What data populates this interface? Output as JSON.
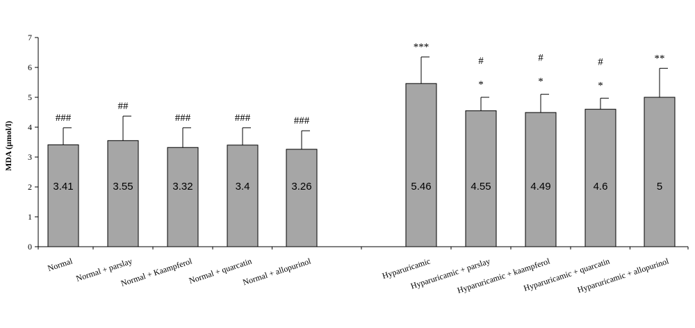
{
  "chart_data": {
    "type": "bar",
    "title": "",
    "xlabel": "",
    "ylabel": "MDA (µmol/l)",
    "ylim": [
      0,
      7
    ],
    "yticks": [
      0,
      1,
      2,
      3,
      4,
      5,
      6,
      7
    ],
    "grid": false,
    "bar_color": "#a6a6a6",
    "categories": [
      "Normal",
      "Normal +  parslay",
      "Normal + Kaampferol",
      "Normal + quarcatin",
      "Normal + allopurinol",
      "Hyparuricamic",
      "Hyparuricamic + parslay",
      "Hyparuricamic + kaampferol",
      "Hyparuricamic + quarcatin",
      "Hyparuricamic + allopurinol"
    ],
    "values": [
      3.41,
      3.55,
      3.32,
      3.4,
      3.26,
      5.46,
      4.55,
      4.49,
      4.6,
      5
    ],
    "value_labels": [
      "3.41",
      "3.55",
      "3.32",
      "3.4",
      "3.26",
      "5.46",
      "4.55",
      "4.49",
      "4.6",
      "5"
    ],
    "error_tops": [
      3.98,
      4.37,
      3.98,
      3.98,
      3.88,
      6.35,
      5.0,
      5.1,
      4.97,
      5.97
    ],
    "annotations_top": [
      "###",
      "##",
      "###",
      "###",
      "###",
      "***",
      "#",
      "#",
      "#",
      "**"
    ],
    "annotations_bottom": [
      "",
      "",
      "",
      "",
      "",
      "",
      "*",
      "*",
      "*",
      ""
    ]
  }
}
